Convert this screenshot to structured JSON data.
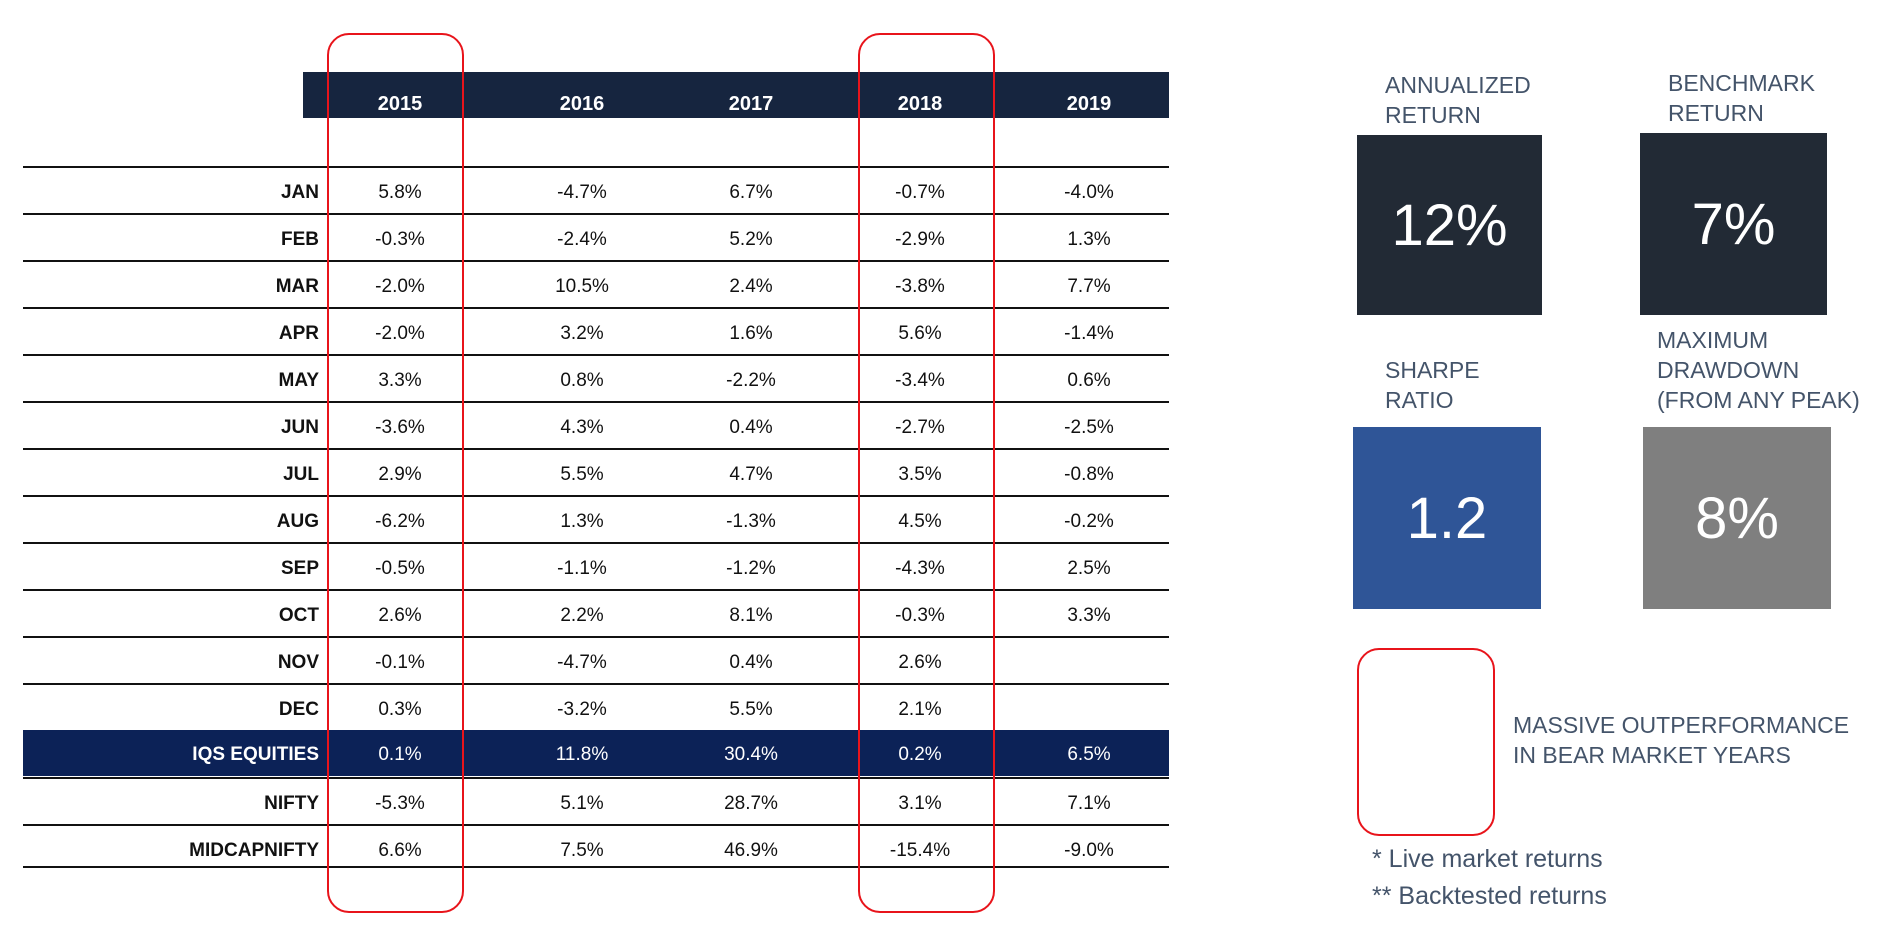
{
  "table": {
    "years": [
      "2015",
      "2016",
      "2017",
      "2018",
      "2019"
    ],
    "rows": [
      {
        "label": "JAN",
        "values": [
          "5.8%",
          "-4.7%",
          "6.7%",
          "-0.7%",
          "-4.0%"
        ]
      },
      {
        "label": "FEB",
        "values": [
          "-0.3%",
          "-2.4%",
          "5.2%",
          "-2.9%",
          "1.3%"
        ]
      },
      {
        "label": "MAR",
        "values": [
          "-2.0%",
          "10.5%",
          "2.4%",
          "-3.8%",
          "7.7%"
        ]
      },
      {
        "label": "APR",
        "values": [
          "-2.0%",
          "3.2%",
          "1.6%",
          "5.6%",
          "-1.4%"
        ]
      },
      {
        "label": "MAY",
        "values": [
          "3.3%",
          "0.8%",
          "-2.2%",
          "-3.4%",
          "0.6%"
        ]
      },
      {
        "label": "JUN",
        "values": [
          "-3.6%",
          "4.3%",
          "0.4%",
          "-2.7%",
          "-2.5%"
        ]
      },
      {
        "label": "JUL",
        "values": [
          "2.9%",
          "5.5%",
          "4.7%",
          "3.5%",
          "-0.8%"
        ]
      },
      {
        "label": "AUG",
        "values": [
          "-6.2%",
          "1.3%",
          "-1.3%",
          "4.5%",
          "-0.2%"
        ]
      },
      {
        "label": "SEP",
        "values": [
          "-0.5%",
          "-1.1%",
          "-1.2%",
          "-4.3%",
          "2.5%"
        ]
      },
      {
        "label": "OCT",
        "values": [
          "2.6%",
          "2.2%",
          "8.1%",
          "-0.3%",
          "3.3%"
        ]
      },
      {
        "label": "NOV",
        "values": [
          "-0.1%",
          "-4.7%",
          "0.4%",
          "2.6%",
          ""
        ]
      },
      {
        "label": "DEC",
        "values": [
          "0.3%",
          "-3.2%",
          "5.5%",
          "2.1%",
          ""
        ]
      },
      {
        "label": "IQS EQUITIES",
        "values": [
          "0.1%",
          "11.8%",
          "30.4%",
          "0.2%",
          "6.5%"
        ],
        "highlight": true
      },
      {
        "label": "NIFTY",
        "values": [
          "-5.3%",
          "5.1%",
          "28.7%",
          "3.1%",
          "7.1%"
        ]
      },
      {
        "label": "MIDCAPNIFTY",
        "values": [
          "6.6%",
          "7.5%",
          "46.9%",
          "-15.4%",
          "-9.0%"
        ]
      }
    ],
    "highlighted_years": [
      "2015",
      "2018"
    ]
  },
  "metrics": {
    "annualized_return": {
      "label_line1": "ANNUALIZED",
      "label_line2": "RETURN",
      "value": "12%",
      "color": "#222a35"
    },
    "benchmark_return": {
      "label_line1": "BENCHMARK",
      "label_line2": "RETURN",
      "value": "7%",
      "color": "#222a35"
    },
    "sharpe_ratio": {
      "label_line1": "SHARPE",
      "label_line2": "RATIO",
      "value": "1.2",
      "color": "#2f5597"
    },
    "max_drawdown": {
      "label_line1": "MAXIMUM",
      "label_line2": "DRAWDOWN",
      "label_line3": "(FROM ANY PEAK)",
      "value": "8%",
      "color": "#7f7f7f"
    }
  },
  "legend": {
    "line1": "MASSIVE OUTPERFORMANCE",
    "line2": "IN BEAR MARKET YEARS",
    "marker_color": "#e8141b"
  },
  "notes": {
    "live": "*  Live market returns",
    "backtested": "** Backtested returns"
  },
  "colors": {
    "header_bg": "#16253f",
    "highlight_row_bg": "#0c2257",
    "metric_text": "#44546a"
  }
}
